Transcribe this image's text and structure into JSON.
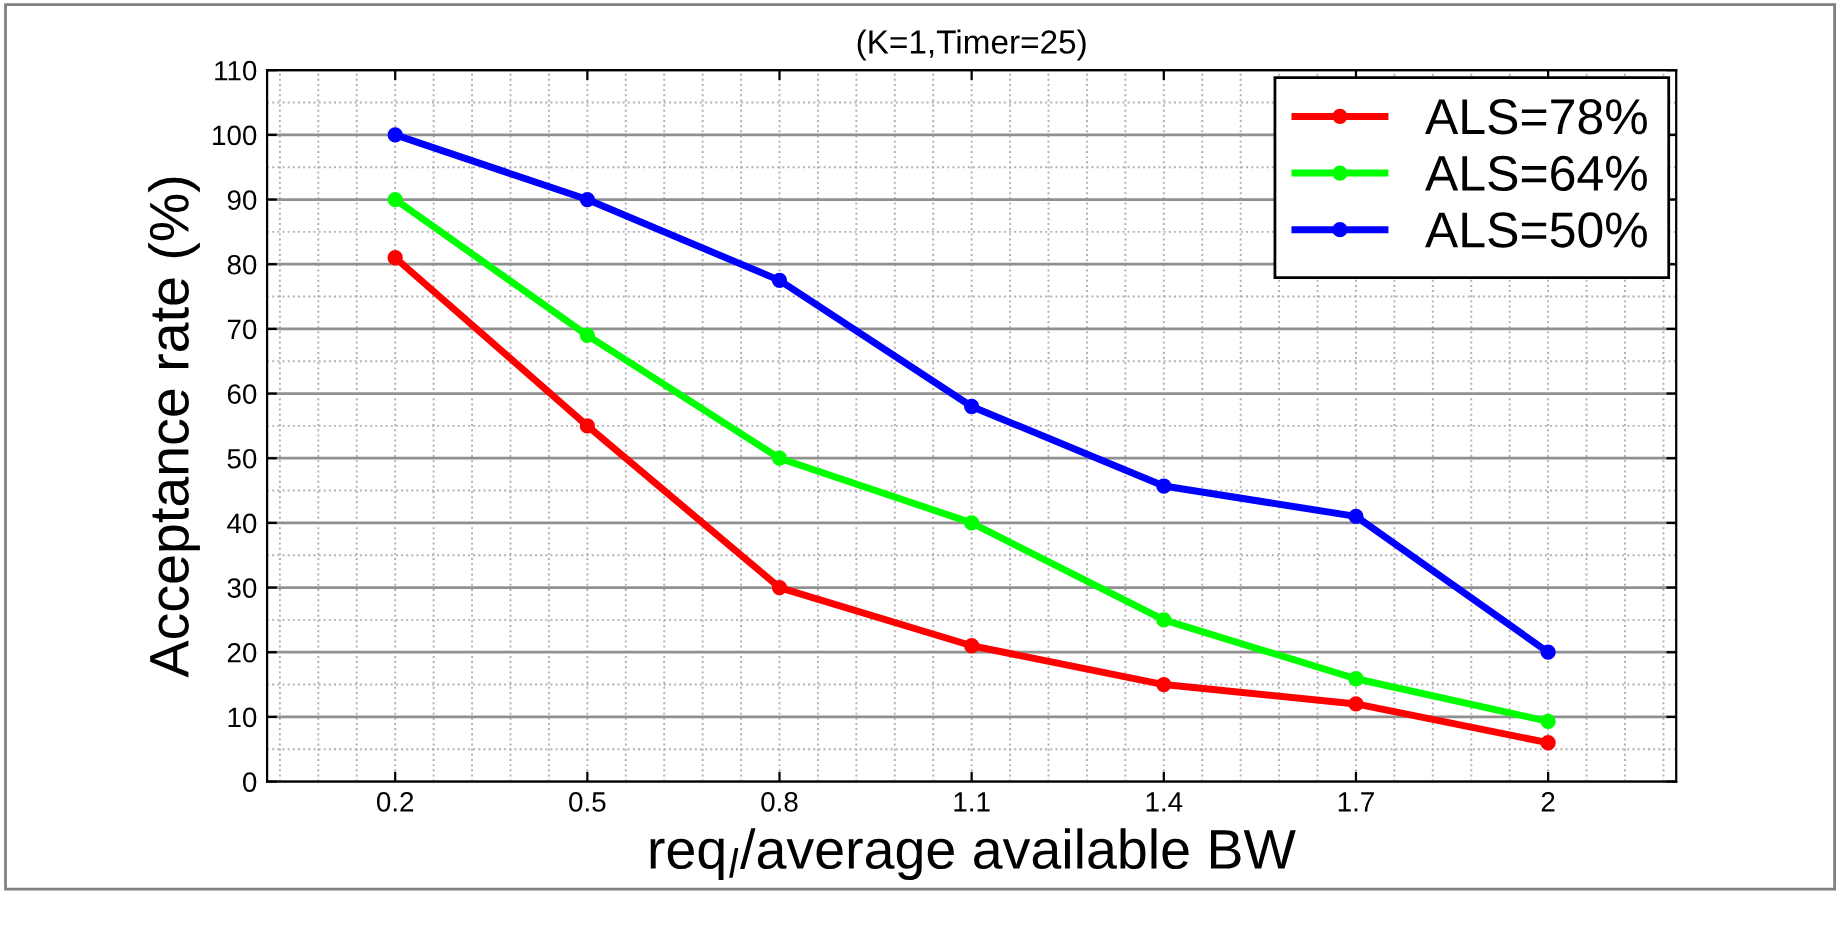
{
  "chart_data": {
    "type": "line",
    "title": "(K=1,Timer=25)",
    "xlabel": "req$_{l}$/average available BW",
    "ylabel": "Acceptance rate (%)",
    "x": [
      0.2,
      0.5,
      0.8,
      1.1,
      1.4,
      1.7,
      2
    ],
    "series": [
      {
        "name": "ALS=78%",
        "color": "#ff0000",
        "values": [
          81,
          55,
          30,
          21,
          15,
          12,
          6
        ]
      },
      {
        "name": "ALS=64%",
        "color": "#00ff00",
        "values": [
          90,
          69,
          50,
          40,
          25,
          15.9,
          9.3
        ]
      },
      {
        "name": "ALS=50%",
        "color": "#0000ff",
        "values": [
          100,
          90,
          77.5,
          58,
          45.7,
          41,
          20
        ]
      }
    ],
    "xlim": [
      0,
      2.2
    ],
    "xticks": [
      0.2,
      0.5,
      0.8,
      1.1,
      1.4,
      1.7,
      2
    ],
    "ylim": [
      0,
      110
    ],
    "yticks": [
      0,
      10,
      20,
      30,
      40,
      50,
      60,
      70,
      80,
      90,
      100,
      110
    ],
    "grid": true,
    "legend": "top right",
    "marker": "circle",
    "line_style": "solid"
  }
}
